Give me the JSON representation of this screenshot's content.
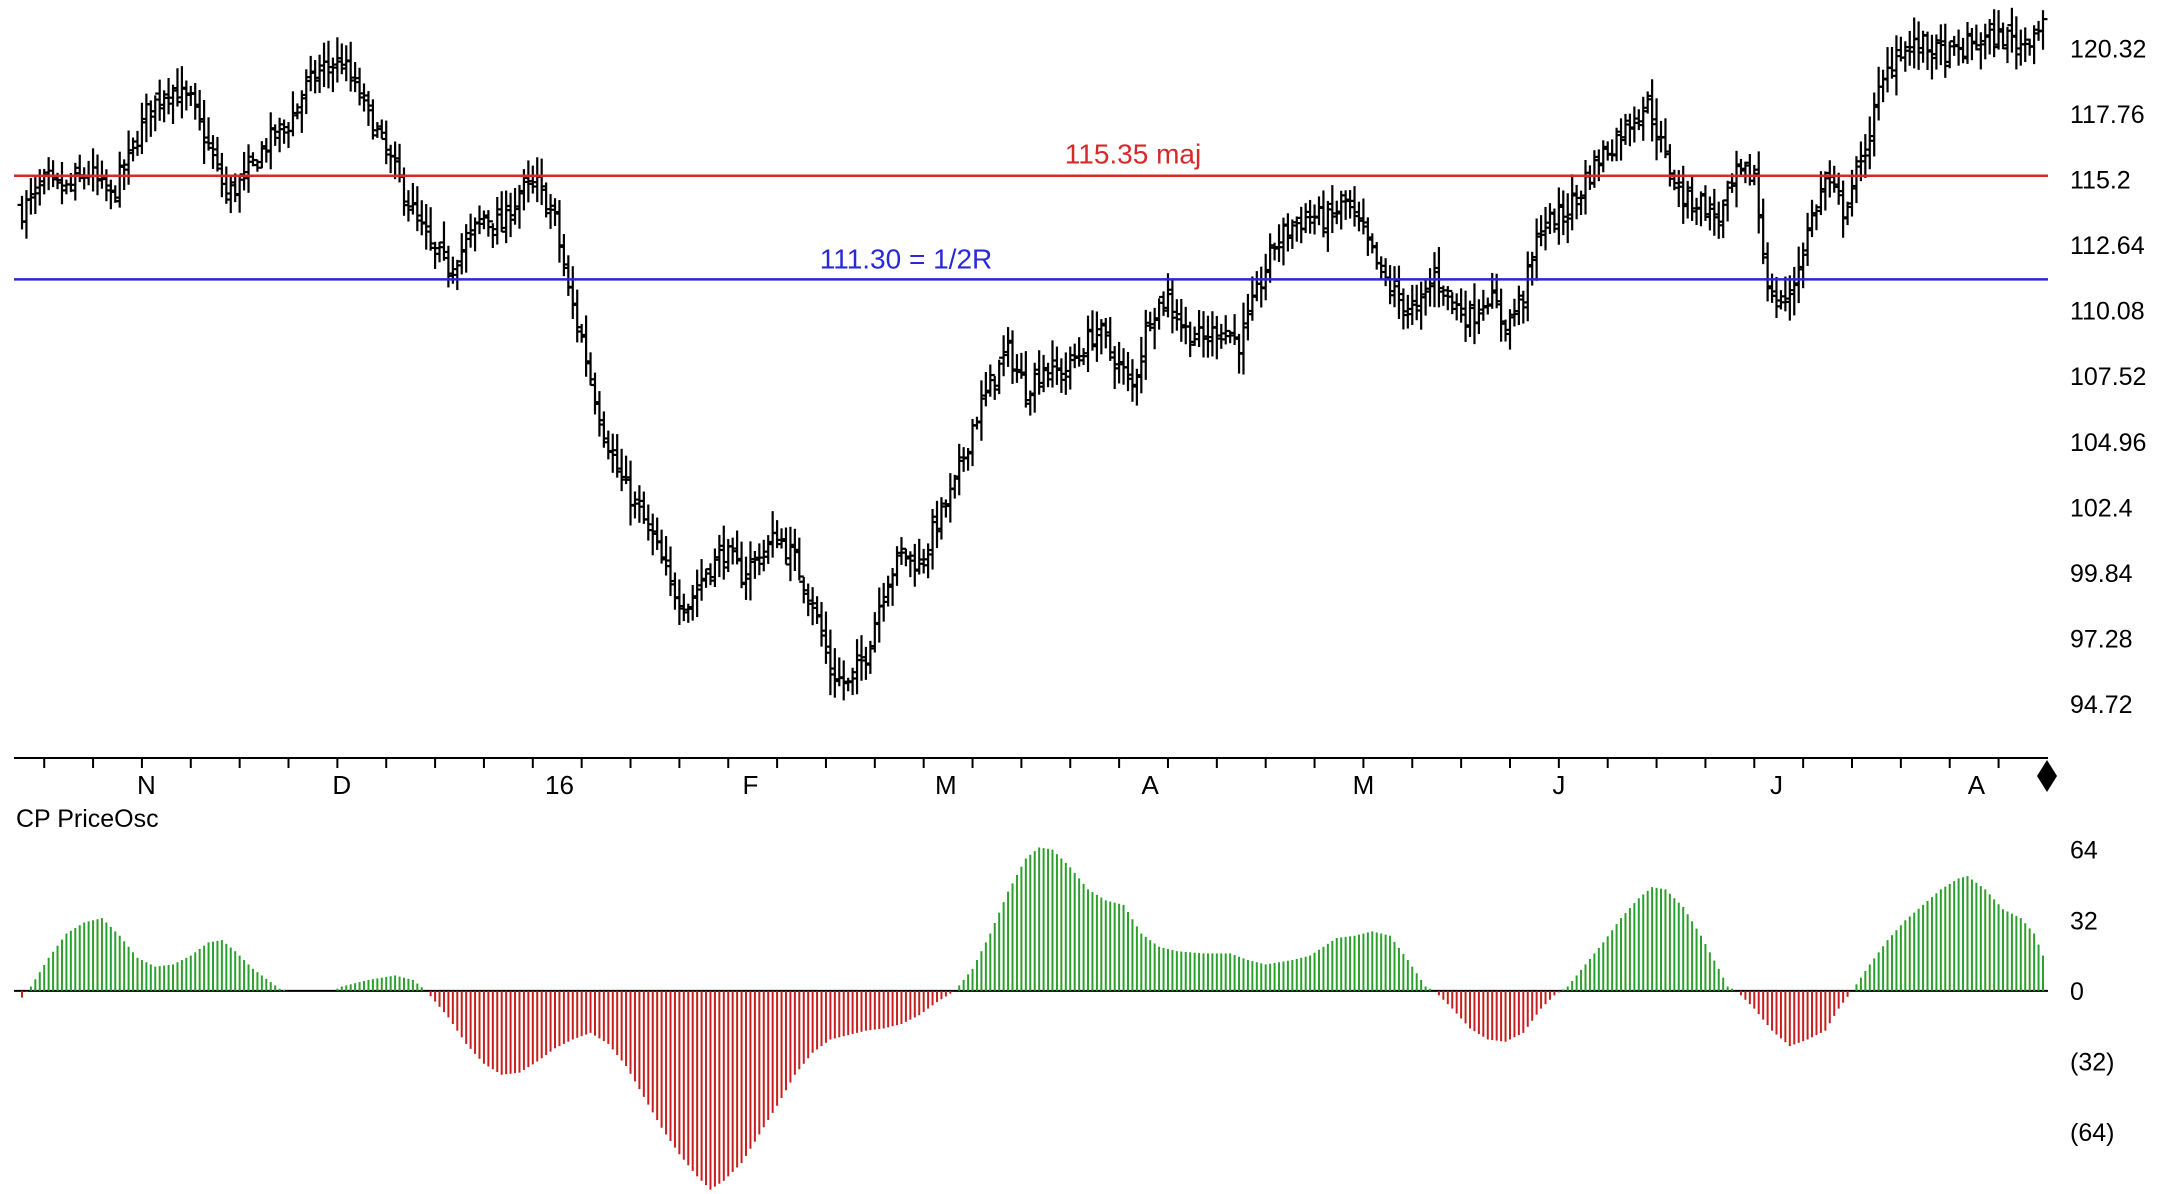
{
  "chart_data": {
    "type": "bar",
    "subtype": "ohlc-price-bars-with-oscillator",
    "price_panel": {
      "y_ticks": [
        "120.32",
        "117.76",
        "115.2",
        "112.64",
        "110.08",
        "107.52",
        "104.96",
        "102.4",
        "99.84",
        "97.28",
        "94.72"
      ],
      "y_tick_values": [
        120.32,
        117.76,
        115.2,
        112.64,
        110.08,
        107.52,
        104.96,
        102.4,
        99.84,
        97.28,
        94.72
      ],
      "ylim": [
        93.0,
        121.9
      ],
      "x_month_labels": [
        "N",
        "D",
        "16",
        "F",
        "M",
        "A",
        "M",
        "J",
        "J",
        "A"
      ],
      "x_month_bar_index": [
        28,
        72,
        121,
        164,
        208,
        254,
        302,
        346,
        395,
        440
      ],
      "bar_count": 456,
      "close_anchors": [
        [
          0,
          114.0
        ],
        [
          5,
          115.0
        ],
        [
          10,
          114.8
        ],
        [
          15,
          115.5
        ],
        [
          20,
          114.5
        ],
        [
          24,
          116.0
        ],
        [
          28,
          117.8
        ],
        [
          33,
          118.8
        ],
        [
          38,
          118.2
        ],
        [
          42,
          116.5
        ],
        [
          46,
          114.6
        ],
        [
          50,
          115.2
        ],
        [
          55,
          116.6
        ],
        [
          60,
          117.4
        ],
        [
          64,
          118.8
        ],
        [
          68,
          119.6
        ],
        [
          72,
          119.8
        ],
        [
          76,
          118.5
        ],
        [
          80,
          117.0
        ],
        [
          84,
          115.5
        ],
        [
          88,
          114.0
        ],
        [
          92,
          112.5
        ],
        [
          96,
          111.8
        ],
        [
          100,
          112.7
        ],
        [
          104,
          113.8
        ],
        [
          108,
          113.4
        ],
        [
          112,
          114.7
        ],
        [
          116,
          115.0
        ],
        [
          120,
          113.6
        ],
        [
          123,
          110.8
        ],
        [
          126,
          109.0
        ],
        [
          130,
          106.0
        ],
        [
          134,
          103.8
        ],
        [
          138,
          102.5
        ],
        [
          142,
          101.2
        ],
        [
          146,
          99.3
        ],
        [
          150,
          98.6
        ],
        [
          154,
          99.9
        ],
        [
          158,
          100.7
        ],
        [
          162,
          99.8
        ],
        [
          166,
          100.5
        ],
        [
          170,
          101.3
        ],
        [
          174,
          100.3
        ],
        [
          178,
          98.7
        ],
        [
          182,
          96.0
        ],
        [
          186,
          95.4
        ],
        [
          190,
          96.7
        ],
        [
          194,
          99.3
        ],
        [
          198,
          100.6
        ],
        [
          202,
          100.2
        ],
        [
          206,
          101.8
        ],
        [
          210,
          103.2
        ],
        [
          214,
          105.6
        ],
        [
          218,
          107.2
        ],
        [
          222,
          108.5
        ],
        [
          226,
          107.0
        ],
        [
          230,
          107.9
        ],
        [
          234,
          107.6
        ],
        [
          238,
          108.4
        ],
        [
          242,
          109.4
        ],
        [
          246,
          108.2
        ],
        [
          250,
          107.1
        ],
        [
          254,
          110.0
        ],
        [
          258,
          110.6
        ],
        [
          262,
          109.3
        ],
        [
          266,
          108.9
        ],
        [
          270,
          109.5
        ],
        [
          274,
          108.8
        ],
        [
          278,
          110.7
        ],
        [
          282,
          112.7
        ],
        [
          286,
          113.4
        ],
        [
          290,
          113.8
        ],
        [
          294,
          113.6
        ],
        [
          298,
          114.3
        ],
        [
          302,
          113.0
        ],
        [
          306,
          111.5
        ],
        [
          310,
          110.5
        ],
        [
          314,
          110.0
        ],
        [
          318,
          111.5
        ],
        [
          322,
          110.4
        ],
        [
          326,
          109.8
        ],
        [
          330,
          110.7
        ],
        [
          334,
          109.5
        ],
        [
          338,
          110.7
        ],
        [
          342,
          113.4
        ],
        [
          346,
          113.7
        ],
        [
          350,
          114.5
        ],
        [
          354,
          115.8
        ],
        [
          358,
          116.6
        ],
        [
          362,
          117.5
        ],
        [
          366,
          118.2
        ],
        [
          370,
          116.0
        ],
        [
          374,
          114.5
        ],
        [
          378,
          114.3
        ],
        [
          382,
          113.6
        ],
        [
          386,
          115.3
        ],
        [
          390,
          115.4
        ],
        [
          392,
          112.4
        ],
        [
          394,
          110.4
        ],
        [
          398,
          110.6
        ],
        [
          402,
          113.2
        ],
        [
          406,
          115.2
        ],
        [
          410,
          114.0
        ],
        [
          414,
          115.8
        ],
        [
          418,
          118.5
        ],
        [
          422,
          120.3
        ],
        [
          428,
          120.4
        ],
        [
          434,
          120.0
        ],
        [
          440,
          120.6
        ],
        [
          446,
          120.8
        ],
        [
          450,
          120.5
        ],
        [
          454,
          121.2
        ],
        [
          455,
          121.5
        ]
      ],
      "horizontal_lines": [
        {
          "value": 115.35,
          "label": "115.35 maj",
          "color": "#d42a2a"
        },
        {
          "value": 111.3,
          "label": "111.30 = 1/2R",
          "color": "#2a2ad4"
        }
      ],
      "bar_color": "#000000"
    },
    "oscillator_panel": {
      "title": "CP PriceOsc",
      "y_ticks": [
        "64",
        "32",
        "0",
        "(32)",
        "(64)"
      ],
      "y_tick_values": [
        64,
        32,
        0,
        -32,
        -64
      ],
      "ylim": [
        -92,
        72
      ],
      "positive_color": "#2ca02c",
      "negative_color": "#c81e1e",
      "value_anchors": [
        [
          0,
          -3
        ],
        [
          2,
          2
        ],
        [
          6,
          15
        ],
        [
          10,
          26
        ],
        [
          14,
          31
        ],
        [
          18,
          33
        ],
        [
          22,
          25
        ],
        [
          26,
          15
        ],
        [
          30,
          11
        ],
        [
          34,
          12
        ],
        [
          38,
          16
        ],
        [
          42,
          22
        ],
        [
          45,
          23
        ],
        [
          48,
          18
        ],
        [
          52,
          10
        ],
        [
          56,
          4
        ],
        [
          58,
          1
        ],
        [
          60,
          0
        ],
        [
          70,
          0
        ],
        [
          72,
          2
        ],
        [
          78,
          5
        ],
        [
          84,
          7
        ],
        [
          88,
          5
        ],
        [
          91,
          0
        ],
        [
          96,
          -12
        ],
        [
          100,
          -24
        ],
        [
          104,
          -33
        ],
        [
          108,
          -38
        ],
        [
          112,
          -37
        ],
        [
          116,
          -32
        ],
        [
          120,
          -26
        ],
        [
          124,
          -22
        ],
        [
          128,
          -19
        ],
        [
          132,
          -24
        ],
        [
          136,
          -34
        ],
        [
          140,
          -48
        ],
        [
          144,
          -62
        ],
        [
          148,
          -74
        ],
        [
          152,
          -84
        ],
        [
          155,
          -90
        ],
        [
          158,
          -86
        ],
        [
          162,
          -78
        ],
        [
          166,
          -65
        ],
        [
          170,
          -52
        ],
        [
          174,
          -38
        ],
        [
          178,
          -28
        ],
        [
          182,
          -22
        ],
        [
          186,
          -20
        ],
        [
          190,
          -18
        ],
        [
          194,
          -17
        ],
        [
          198,
          -15
        ],
        [
          202,
          -11
        ],
        [
          206,
          -5
        ],
        [
          210,
          0
        ],
        [
          214,
          10
        ],
        [
          218,
          26
        ],
        [
          222,
          45
        ],
        [
          226,
          60
        ],
        [
          229,
          65
        ],
        [
          232,
          64
        ],
        [
          236,
          56
        ],
        [
          240,
          46
        ],
        [
          244,
          41
        ],
        [
          248,
          39
        ],
        [
          252,
          26
        ],
        [
          256,
          20
        ],
        [
          260,
          18
        ],
        [
          266,
          17
        ],
        [
          272,
          17
        ],
        [
          276,
          14
        ],
        [
          280,
          12
        ],
        [
          286,
          14
        ],
        [
          290,
          16
        ],
        [
          296,
          24
        ],
        [
          300,
          25
        ],
        [
          304,
          27
        ],
        [
          308,
          25
        ],
        [
          312,
          14
        ],
        [
          316,
          2
        ],
        [
          318,
          0
        ],
        [
          322,
          -8
        ],
        [
          326,
          -17
        ],
        [
          330,
          -22
        ],
        [
          334,
          -23
        ],
        [
          338,
          -19
        ],
        [
          342,
          -8
        ],
        [
          345,
          -2
        ],
        [
          348,
          2
        ],
        [
          352,
          12
        ],
        [
          356,
          22
        ],
        [
          360,
          33
        ],
        [
          364,
          42
        ],
        [
          367,
          47
        ],
        [
          370,
          46
        ],
        [
          374,
          38
        ],
        [
          378,
          25
        ],
        [
          382,
          10
        ],
        [
          384,
          2
        ],
        [
          386,
          0
        ],
        [
          390,
          -8
        ],
        [
          394,
          -18
        ],
        [
          398,
          -25
        ],
        [
          402,
          -22
        ],
        [
          406,
          -18
        ],
        [
          409,
          -8
        ],
        [
          412,
          0
        ],
        [
          416,
          12
        ],
        [
          420,
          23
        ],
        [
          424,
          32
        ],
        [
          428,
          39
        ],
        [
          432,
          46
        ],
        [
          436,
          51
        ],
        [
          438,
          52
        ],
        [
          442,
          46
        ],
        [
          446,
          37
        ],
        [
          450,
          33
        ],
        [
          453,
          26
        ],
        [
          455,
          16
        ]
      ]
    }
  }
}
